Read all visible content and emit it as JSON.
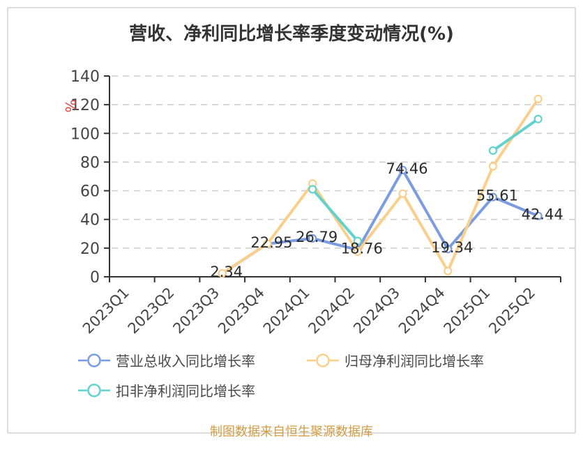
{
  "title": "营收、净利同比增长率季度变动情况(%)",
  "footer": "制图数据来自恒生聚源数据库",
  "colors": {
    "revenue_series": "#7B9CE1",
    "net_profit_series": "#F9CF8B",
    "deducted_profit_series": "#63D2CC",
    "grid": "#CFCFCF",
    "axis": "#333333",
    "unit_label_red": "#E04545",
    "footer_gold": "#D29C44",
    "card_border": "#DCDCDC"
  },
  "chart_data": {
    "type": "line",
    "title": "营收、净利同比增长率季度变动情况(%)",
    "xlabel": "",
    "ylabel": "%",
    "ylim": [
      0,
      140
    ],
    "ytick_step": 20,
    "grid": "horizontal dashed",
    "legend_position": "bottom-left two rows",
    "categories": [
      "2023Q1",
      "2023Q2",
      "2023Q3",
      "2023Q4",
      "2024Q1",
      "2024Q2",
      "2024Q3",
      "2024Q4",
      "2025Q1",
      "2025Q2"
    ],
    "series": [
      {
        "name": "营业总收入同比增长率",
        "color": "#7B9CE1",
        "show_labels": true,
        "values": [
          null,
          null,
          2.34,
          22.95,
          26.79,
          18.76,
          74.46,
          19.34,
          55.61,
          42.44
        ]
      },
      {
        "name": "归母净利润同比增长率",
        "color": "#F9CF8B",
        "show_labels": false,
        "values": [
          null,
          null,
          2.4,
          23,
          65,
          17.5,
          58,
          4,
          77,
          124
        ]
      },
      {
        "name": "扣非净利润同比增长率",
        "color": "#63D2CC",
        "show_labels": false,
        "values": [
          null,
          null,
          null,
          null,
          61,
          25,
          null,
          null,
          88,
          110
        ]
      }
    ]
  }
}
